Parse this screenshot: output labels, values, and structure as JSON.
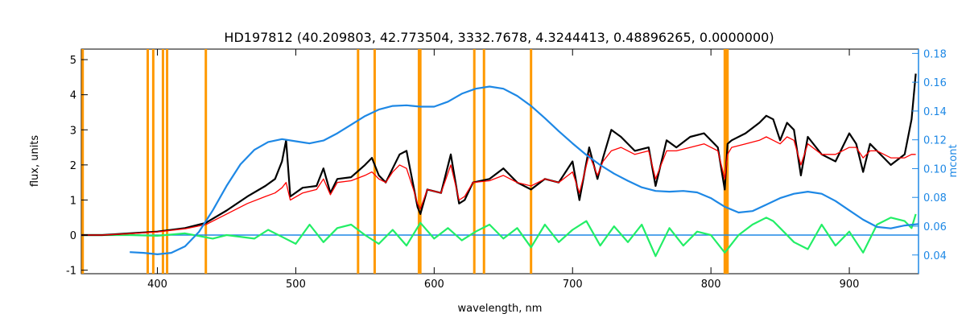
{
  "chart_data": {
    "type": "line",
    "title": "HD197812    (40.209803, 42.773504, 3332.7678, 4.3244413, 0.48896265, 0.0000000)",
    "xlabel": "wavelength, nm",
    "ylabel": "flux, units",
    "ylabel_right": "mcont",
    "xlim": [
      345,
      950
    ],
    "ylim": [
      -1.1,
      5.3
    ],
    "ylim_right": [
      0.027,
      0.183
    ],
    "x_ticks": [
      400,
      500,
      600,
      700,
      800,
      900
    ],
    "y_ticks": [
      -1,
      0,
      1,
      2,
      3,
      4,
      5
    ],
    "y_ticks_right": [
      0.04,
      0.06,
      0.08,
      0.1,
      0.12,
      0.14,
      0.16,
      0.18
    ],
    "y_tick_labels_right": [
      "0.04",
      "0.06",
      "0.08",
      "0.10",
      "0.12",
      "0.14",
      "0.16",
      "0.18"
    ],
    "vertical_lines": [
      346,
      393,
      397,
      404,
      407,
      435,
      545,
      557,
      589,
      590,
      629,
      636,
      670,
      810,
      811,
      812
    ],
    "zero_line": 0,
    "colors": {
      "observed": "#000000",
      "model": "#ff0000",
      "residual": "#22ee66",
      "continuum": "#1e88e5",
      "markers": "#ff9900"
    },
    "series": [
      {
        "role": "observed",
        "x": [
          345,
          360,
          380,
          400,
          420,
          435,
          450,
          465,
          478,
          485,
          490,
          493,
          496,
          505,
          515,
          520,
          525,
          530,
          540,
          550,
          555,
          560,
          565,
          570,
          575,
          580,
          585,
          588,
          590,
          595,
          605,
          612,
          618,
          622,
          628,
          640,
          650,
          660,
          670,
          680,
          690,
          700,
          705,
          712,
          718,
          722,
          728,
          735,
          745,
          755,
          760,
          768,
          775,
          785,
          795,
          805,
          810,
          812,
          815,
          825,
          835,
          840,
          845,
          850,
          855,
          860,
          865,
          870,
          880,
          890,
          900,
          905,
          910,
          915,
          920,
          930,
          940,
          945,
          948
        ],
        "y": [
          0.0,
          0.0,
          0.05,
          0.1,
          0.2,
          0.35,
          0.7,
          1.1,
          1.4,
          1.6,
          2.1,
          2.7,
          1.1,
          1.35,
          1.4,
          1.9,
          1.2,
          1.6,
          1.65,
          2.0,
          2.2,
          1.7,
          1.5,
          1.9,
          2.3,
          2.4,
          1.4,
          0.8,
          0.6,
          1.3,
          1.2,
          2.3,
          0.9,
          1.0,
          1.5,
          1.6,
          1.9,
          1.5,
          1.3,
          1.6,
          1.5,
          2.1,
          1.0,
          2.5,
          1.6,
          2.2,
          3.0,
          2.8,
          2.4,
          2.5,
          1.4,
          2.7,
          2.5,
          2.8,
          2.9,
          2.5,
          1.3,
          2.6,
          2.7,
          2.9,
          3.2,
          3.4,
          3.3,
          2.7,
          3.2,
          3.0,
          1.7,
          2.8,
          2.3,
          2.1,
          2.9,
          2.6,
          1.8,
          2.6,
          2.4,
          2.0,
          2.3,
          3.3,
          4.6
        ]
      },
      {
        "role": "model",
        "x": [
          345,
          360,
          380,
          400,
          420,
          435,
          450,
          465,
          478,
          485,
          490,
          493,
          496,
          505,
          515,
          520,
          525,
          530,
          540,
          550,
          555,
          560,
          565,
          570,
          575,
          580,
          585,
          588,
          590,
          595,
          605,
          612,
          618,
          622,
          628,
          640,
          650,
          660,
          670,
          680,
          690,
          700,
          705,
          712,
          718,
          722,
          728,
          735,
          745,
          755,
          760,
          768,
          775,
          785,
          795,
          805,
          810,
          812,
          815,
          825,
          835,
          840,
          845,
          850,
          855,
          860,
          865,
          870,
          880,
          890,
          900,
          905,
          910,
          915,
          920,
          930,
          940,
          945,
          948
        ],
        "y": [
          0.0,
          0.0,
          0.04,
          0.09,
          0.18,
          0.3,
          0.6,
          0.9,
          1.1,
          1.2,
          1.35,
          1.5,
          1.0,
          1.2,
          1.3,
          1.6,
          1.15,
          1.5,
          1.55,
          1.7,
          1.8,
          1.6,
          1.5,
          1.8,
          2.0,
          1.9,
          1.3,
          0.9,
          0.75,
          1.3,
          1.2,
          2.0,
          1.0,
          1.1,
          1.5,
          1.55,
          1.7,
          1.5,
          1.4,
          1.6,
          1.5,
          1.8,
          1.2,
          2.3,
          1.7,
          2.1,
          2.4,
          2.5,
          2.3,
          2.4,
          1.6,
          2.4,
          2.4,
          2.5,
          2.6,
          2.4,
          1.6,
          2.3,
          2.5,
          2.6,
          2.7,
          2.8,
          2.7,
          2.6,
          2.8,
          2.7,
          2.0,
          2.6,
          2.3,
          2.3,
          2.5,
          2.5,
          2.2,
          2.4,
          2.4,
          2.2,
          2.2,
          2.3,
          2.3
        ]
      },
      {
        "role": "residual",
        "x": [
          345,
          380,
          400,
          420,
          440,
          450,
          470,
          480,
          490,
          500,
          510,
          520,
          530,
          540,
          550,
          560,
          570,
          580,
          590,
          600,
          610,
          620,
          630,
          640,
          650,
          660,
          670,
          680,
          690,
          700,
          710,
          720,
          730,
          740,
          750,
          760,
          770,
          780,
          790,
          800,
          810,
          812,
          820,
          830,
          840,
          845,
          850,
          860,
          870,
          880,
          890,
          900,
          910,
          920,
          930,
          940,
          945,
          948
        ],
        "y": [
          0.0,
          0.0,
          -0.02,
          0.05,
          -0.1,
          0.0,
          -0.1,
          0.15,
          -0.05,
          -0.25,
          0.3,
          -0.2,
          0.2,
          0.3,
          0.0,
          -0.25,
          0.15,
          -0.3,
          0.35,
          -0.1,
          0.2,
          -0.15,
          0.1,
          0.3,
          -0.1,
          0.2,
          -0.35,
          0.3,
          -0.2,
          0.15,
          0.4,
          -0.3,
          0.25,
          -0.2,
          0.3,
          -0.6,
          0.2,
          -0.3,
          0.1,
          0.0,
          -0.5,
          -0.4,
          0.0,
          0.3,
          0.5,
          0.4,
          0.2,
          -0.2,
          -0.4,
          0.3,
          -0.3,
          0.1,
          -0.5,
          0.3,
          0.5,
          0.4,
          0.2,
          0.6
        ]
      },
      {
        "role": "continuum",
        "axis": "right",
        "x": [
          380,
          390,
          400,
          410,
          420,
          430,
          440,
          450,
          460,
          470,
          480,
          490,
          500,
          510,
          520,
          530,
          540,
          550,
          560,
          570,
          580,
          590,
          600,
          610,
          620,
          630,
          640,
          650,
          660,
          670,
          680,
          690,
          700,
          710,
          720,
          730,
          740,
          750,
          760,
          770,
          780,
          790,
          800,
          810,
          820,
          830,
          840,
          850,
          860,
          870,
          880,
          890,
          900,
          910,
          920,
          930,
          940,
          950
        ],
        "y": [
          0.042,
          0.0415,
          0.0405,
          0.0415,
          0.046,
          0.056,
          0.071,
          0.088,
          0.103,
          0.113,
          0.1185,
          0.1205,
          0.119,
          0.1175,
          0.1195,
          0.1245,
          0.1305,
          0.1365,
          0.141,
          0.1435,
          0.144,
          0.143,
          0.143,
          0.1465,
          0.152,
          0.1555,
          0.157,
          0.1555,
          0.1505,
          0.1435,
          0.135,
          0.126,
          0.1175,
          0.1095,
          0.1025,
          0.0965,
          0.0915,
          0.087,
          0.0845,
          0.084,
          0.0845,
          0.0835,
          0.0795,
          0.0735,
          0.0695,
          0.0705,
          0.075,
          0.0795,
          0.0825,
          0.084,
          0.0825,
          0.0775,
          0.071,
          0.0645,
          0.0595,
          0.0585,
          0.0605,
          0.0615
        ]
      }
    ]
  }
}
